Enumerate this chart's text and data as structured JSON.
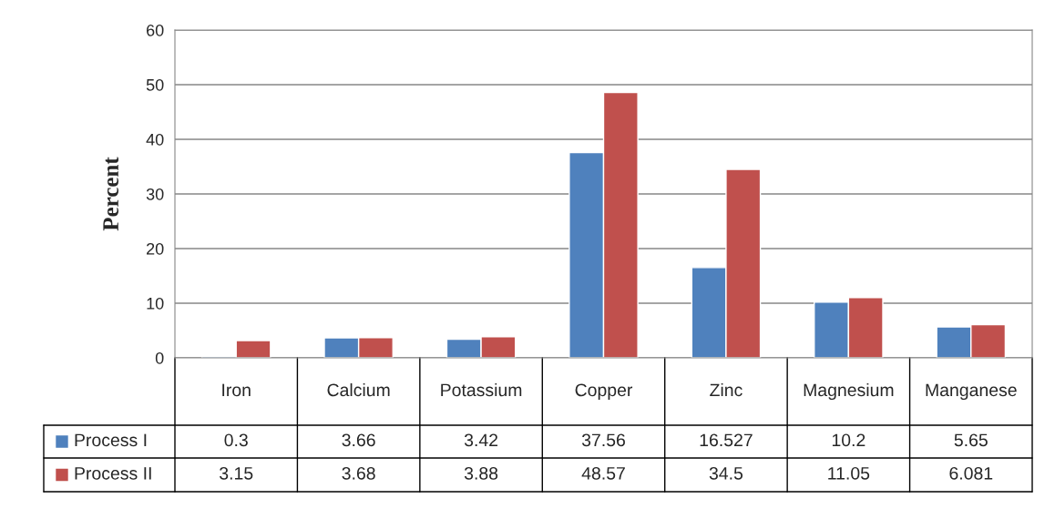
{
  "chart_data": {
    "type": "bar",
    "ylabel": "Percent",
    "categories": [
      "Iron",
      "Calcium",
      "Potassium",
      "Copper",
      "Zinc",
      "Magnesium",
      "Manganese"
    ],
    "series": [
      {
        "name": "Process I",
        "color": "#4f81bd",
        "values": [
          0.3,
          3.66,
          3.42,
          37.56,
          16.527,
          10.2,
          5.65
        ]
      },
      {
        "name": "Process II",
        "color": "#c0504d",
        "values": [
          3.15,
          3.68,
          3.88,
          48.57,
          34.5,
          11.05,
          6.081
        ]
      }
    ],
    "ylim": [
      0,
      60
    ],
    "yticks": [
      0,
      10,
      20,
      30,
      40,
      50,
      60
    ],
    "grid": "y",
    "legend": "bottom",
    "data_labels": true
  }
}
